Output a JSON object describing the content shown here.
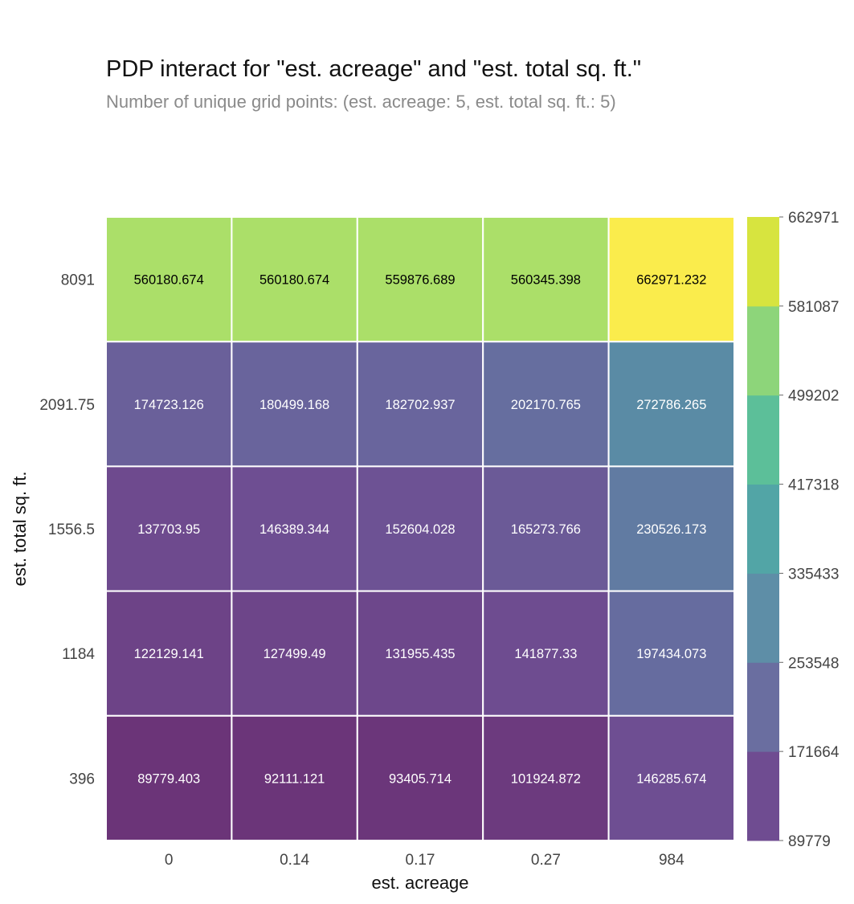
{
  "chart_data": {
    "type": "heatmap",
    "title": "PDP interact for \"est. acreage\" and \"est. total sq. ft.\"",
    "subtitle": "Number of unique grid points: (est. acreage: 5, est. total sq. ft.: 5)",
    "xlabel": "est. acreage",
    "ylabel": "est. total sq. ft.",
    "x_categories": [
      "0",
      "0.14",
      "0.17",
      "0.27",
      "984"
    ],
    "y_categories": [
      "8091",
      "2091.75",
      "1556.5",
      "1184",
      "396"
    ],
    "values": [
      [
        "560180.674",
        "560180.674",
        "559876.689",
        "560345.398",
        "662971.232"
      ],
      [
        "174723.126",
        "180499.168",
        "182702.937",
        "202170.765",
        "272786.265"
      ],
      [
        "137703.95",
        "146389.344",
        "152604.028",
        "165273.766",
        "230526.173"
      ],
      [
        "122129.141",
        "127499.49",
        "131955.435",
        "141877.33",
        "197434.073"
      ],
      [
        "89779.403",
        "92111.121",
        "93405.714",
        "101924.872",
        "146285.674"
      ]
    ],
    "colorbar": {
      "ticks": [
        "662971",
        "581087",
        "499202",
        "417318",
        "335433",
        "253548",
        "171664",
        "89779"
      ],
      "min": 89779,
      "max": 662971,
      "colors": [
        "#6f4c91",
        "#6a6ea0",
        "#5e8ea7",
        "#52a5a6",
        "#5cbf99",
        "#8dd57a",
        "#d7e43f"
      ]
    },
    "colormap": "viridis",
    "grid": false
  }
}
